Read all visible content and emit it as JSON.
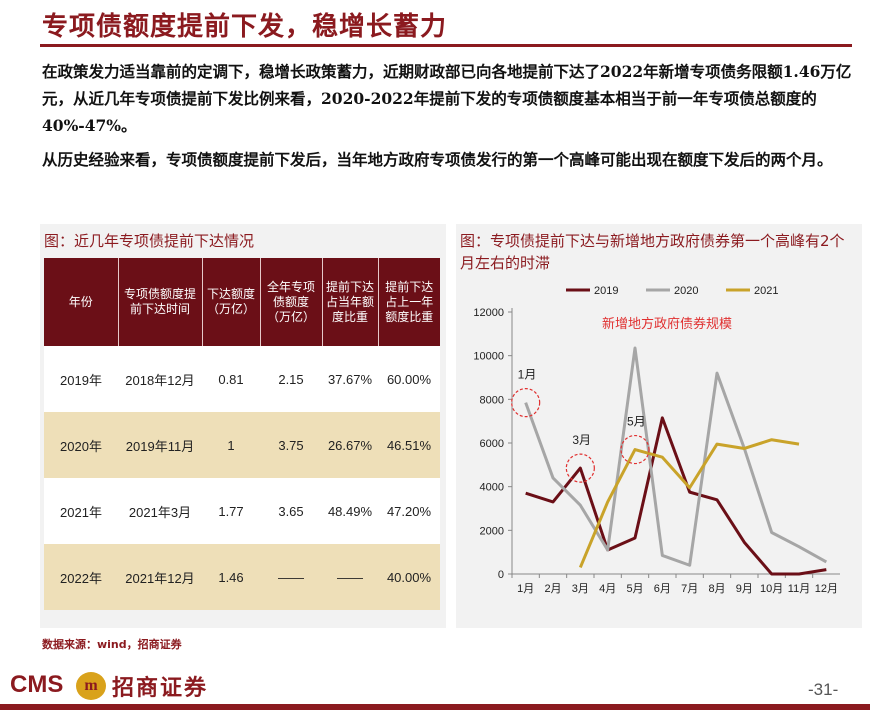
{
  "header": {
    "title": "专项债额度提前下发，稳增长蓄力"
  },
  "body": {
    "paragraph_1": "在政策发力适当靠前的定调下，稳增长政策蓄力，近期财政部已向各地提前下达了2022年新增专项债务限额1.46万亿元，从近几年专项债提前下发比例来看，2020-2022年提前下发的专项债额度基本相当于前一年专项债总额度的40%-47%。",
    "paragraph_2": "从历史经验来看，专项债额度提前下发后，当年地方政府专项债发行的第一个高峰可能出现在额度下发后的两个月。"
  },
  "left_panel": {
    "title": "图：近几年专项债提前下达情况",
    "columns": [
      "年份",
      "专项债额度提前下达时间",
      "下达额度（万亿）",
      "全年专项债额度（万亿）",
      "提前下达占当年额度比重",
      "提前下达占上一年额度比重"
    ],
    "rows": [
      [
        "2019年",
        "2018年12月",
        "0.81",
        "2.15",
        "37.67%",
        "60.00%"
      ],
      [
        "2020年",
        "2019年11月",
        "1",
        "3.75",
        "26.67%",
        "46.51%"
      ],
      [
        "2021年",
        "2021年3月",
        "1.77",
        "3.65",
        "48.49%",
        "47.20%"
      ],
      [
        "2022年",
        "2021年12月",
        "1.46",
        "——",
        "——",
        "40.00%"
      ]
    ]
  },
  "right_panel": {
    "title": "图：专项债提前下达与新增地方政府债券第一个高峰有2个月左右的时滞"
  },
  "chart_data": {
    "type": "line",
    "title": "新增地方政府债券规模",
    "categories": [
      "1月",
      "2月",
      "3月",
      "4月",
      "5月",
      "6月",
      "7月",
      "8月",
      "9月",
      "10月",
      "11月",
      "12月"
    ],
    "ylim": [
      0,
      12000
    ],
    "yticks": [
      0,
      2000,
      4000,
      6000,
      8000,
      10000,
      12000
    ],
    "legend_position": "top",
    "series": [
      {
        "name": "2019",
        "color": "#6b0f17",
        "values": [
          3700,
          3300,
          4850,
          1100,
          1650,
          7150,
          3750,
          3400,
          1450,
          0,
          0,
          200
        ]
      },
      {
        "name": "2020",
        "color": "#a6a6a6",
        "values": [
          7850,
          4400,
          3150,
          1100,
          10350,
          850,
          400,
          9200,
          5750,
          1900,
          1250,
          550
        ]
      },
      {
        "name": "2021",
        "color": "#c9a32a",
        "values": [
          null,
          null,
          300,
          3300,
          5700,
          5350,
          3950,
          5950,
          5750,
          6150,
          5950,
          null
        ]
      }
    ],
    "annotations": [
      {
        "label": "1月",
        "x_index": 0,
        "y": 7850
      },
      {
        "label": "3月",
        "x_index": 2,
        "y": 4850
      },
      {
        "label": "5月",
        "x_index": 4,
        "y": 5700
      }
    ]
  },
  "source": "数据来源：wind，招商证券",
  "footer": {
    "logo_text": "CMS",
    "logo_badge": "m",
    "logo_cn": "招商证券",
    "page_number": "-31-"
  },
  "colors": {
    "accent": "#8b1a1f",
    "table_header": "#6b0f17",
    "table_stripe": "#eedfb8"
  }
}
